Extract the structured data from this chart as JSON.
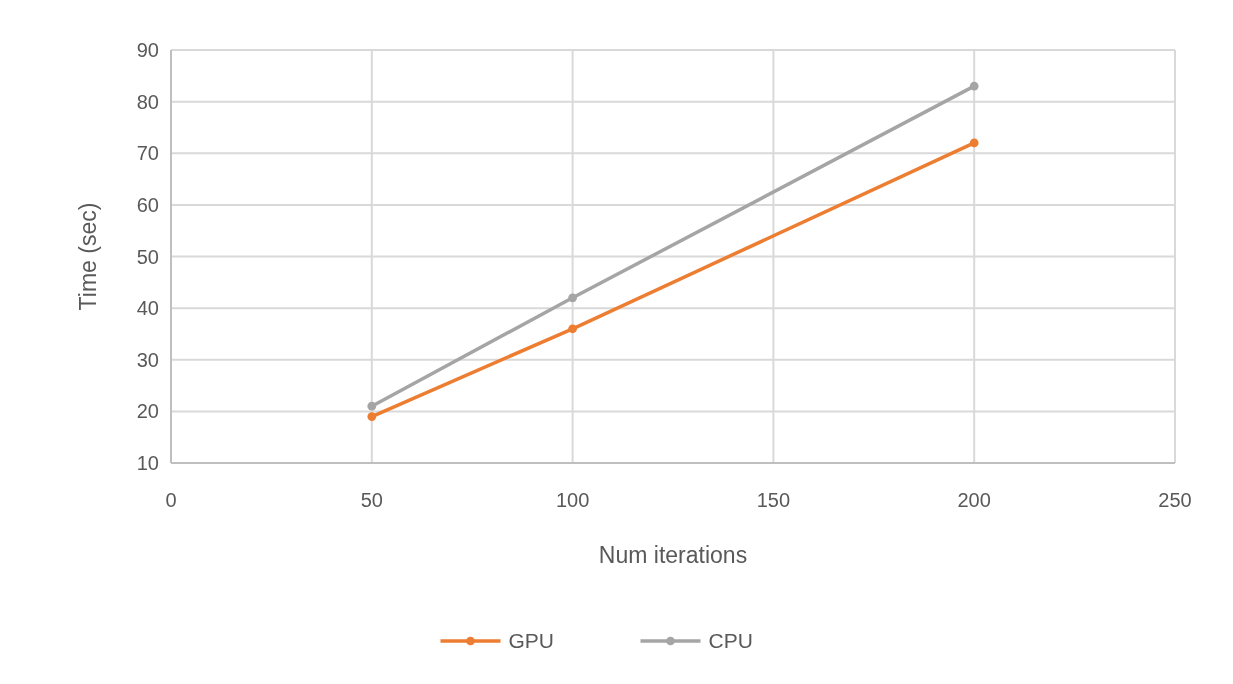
{
  "chart_data": {
    "type": "line",
    "xlabel": "Num iterations",
    "ylabel": "Time (sec)",
    "x": [
      50,
      100,
      200
    ],
    "series": [
      {
        "name": "GPU",
        "color": "#ed7d31",
        "values": [
          19,
          36,
          72
        ]
      },
      {
        "name": "CPU",
        "color": "#a5a5a5",
        "values": [
          21,
          42,
          83
        ]
      }
    ],
    "xlim": [
      0,
      250
    ],
    "xticks": [
      0,
      50,
      100,
      150,
      200,
      250
    ],
    "ylim": [
      10,
      90
    ],
    "yticks": [
      10,
      20,
      30,
      40,
      50,
      60,
      70,
      80,
      90
    ],
    "grid": true,
    "legend": "bottom",
    "marker": "circle",
    "line_style": "solid"
  }
}
